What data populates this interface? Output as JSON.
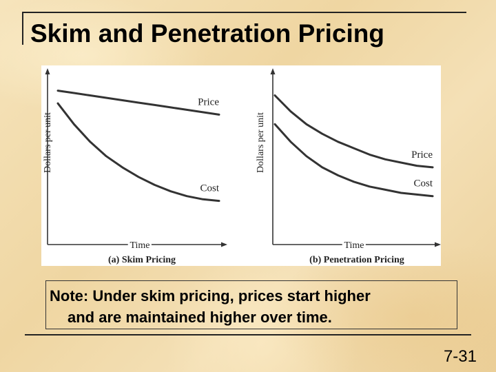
{
  "slide": {
    "title": "Skim and Penetration Pricing",
    "note_line1": "Note: Under skim pricing, prices start higher",
    "note_line2": "and are maintained higher over time.",
    "slide_number": "7-31"
  },
  "chart_data": [
    {
      "type": "line",
      "title": "(a) Skim Pricing",
      "xlabel": "Time",
      "ylabel": "Dollars per unit",
      "x": [
        0,
        1,
        2,
        3,
        4,
        5,
        6,
        7,
        8,
        9,
        10
      ],
      "ylim": [
        0,
        100
      ],
      "grid": false,
      "series": [
        {
          "name": "Price",
          "values": [
            92,
            90.5,
            89,
            87.5,
            86,
            84.5,
            83,
            81.5,
            80,
            78.5,
            77
          ]
        },
        {
          "name": "Cost",
          "values": [
            84,
            71,
            60,
            51,
            44,
            38,
            33,
            29,
            26,
            24,
            23
          ]
        }
      ]
    },
    {
      "type": "line",
      "title": "(b) Penetration Pricing",
      "xlabel": "Time",
      "ylabel": "Dollars per unit",
      "x": [
        0,
        1,
        2,
        3,
        4,
        5,
        6,
        7,
        8,
        9,
        10
      ],
      "ylim": [
        0,
        100
      ],
      "grid": false,
      "series": [
        {
          "name": "Price",
          "values": [
            89,
            79,
            71,
            65,
            60,
            56,
            52,
            49,
            47,
            45,
            44
          ]
        },
        {
          "name": "Cost",
          "values": [
            71,
            60,
            51,
            44,
            39,
            35,
            32,
            30,
            28,
            27,
            26
          ]
        }
      ]
    }
  ]
}
